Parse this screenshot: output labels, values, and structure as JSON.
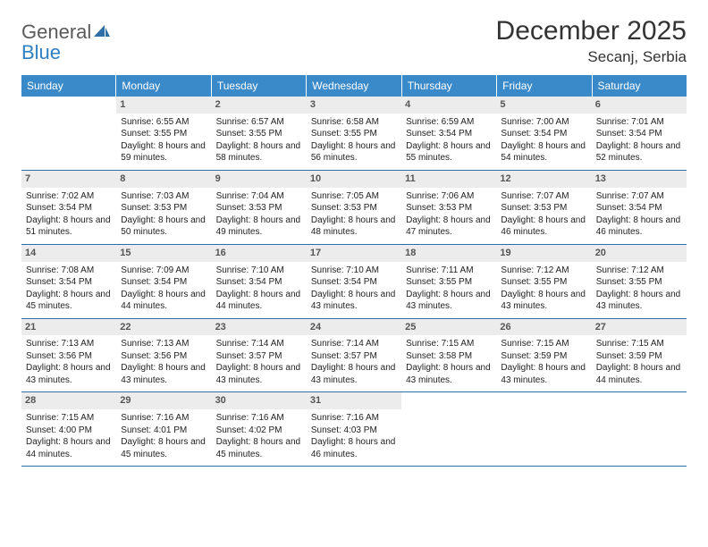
{
  "logo": {
    "word1": "General",
    "word2": "Blue",
    "word1_color": "#5a5a5a",
    "word2_color": "#2f7fc2",
    "sail_color": "#2f6fa8"
  },
  "title": "December 2025",
  "subtitle": "Secanj, Serbia",
  "header_bg": "#3a89c9",
  "daynum_bg": "#ececec",
  "border_color": "#2f6fa8",
  "day_names": [
    "Sunday",
    "Monday",
    "Tuesday",
    "Wednesday",
    "Thursday",
    "Friday",
    "Saturday"
  ],
  "weeks": [
    [
      {
        "empty": true
      },
      {
        "n": "1",
        "sr": "6:55 AM",
        "ss": "3:55 PM",
        "dl": "8 hours and 59 minutes."
      },
      {
        "n": "2",
        "sr": "6:57 AM",
        "ss": "3:55 PM",
        "dl": "8 hours and 58 minutes."
      },
      {
        "n": "3",
        "sr": "6:58 AM",
        "ss": "3:55 PM",
        "dl": "8 hours and 56 minutes."
      },
      {
        "n": "4",
        "sr": "6:59 AM",
        "ss": "3:54 PM",
        "dl": "8 hours and 55 minutes."
      },
      {
        "n": "5",
        "sr": "7:00 AM",
        "ss": "3:54 PM",
        "dl": "8 hours and 54 minutes."
      },
      {
        "n": "6",
        "sr": "7:01 AM",
        "ss": "3:54 PM",
        "dl": "8 hours and 52 minutes."
      }
    ],
    [
      {
        "n": "7",
        "sr": "7:02 AM",
        "ss": "3:54 PM",
        "dl": "8 hours and 51 minutes."
      },
      {
        "n": "8",
        "sr": "7:03 AM",
        "ss": "3:53 PM",
        "dl": "8 hours and 50 minutes."
      },
      {
        "n": "9",
        "sr": "7:04 AM",
        "ss": "3:53 PM",
        "dl": "8 hours and 49 minutes."
      },
      {
        "n": "10",
        "sr": "7:05 AM",
        "ss": "3:53 PM",
        "dl": "8 hours and 48 minutes."
      },
      {
        "n": "11",
        "sr": "7:06 AM",
        "ss": "3:53 PM",
        "dl": "8 hours and 47 minutes."
      },
      {
        "n": "12",
        "sr": "7:07 AM",
        "ss": "3:53 PM",
        "dl": "8 hours and 46 minutes."
      },
      {
        "n": "13",
        "sr": "7:07 AM",
        "ss": "3:54 PM",
        "dl": "8 hours and 46 minutes."
      }
    ],
    [
      {
        "n": "14",
        "sr": "7:08 AM",
        "ss": "3:54 PM",
        "dl": "8 hours and 45 minutes."
      },
      {
        "n": "15",
        "sr": "7:09 AM",
        "ss": "3:54 PM",
        "dl": "8 hours and 44 minutes."
      },
      {
        "n": "16",
        "sr": "7:10 AM",
        "ss": "3:54 PM",
        "dl": "8 hours and 44 minutes."
      },
      {
        "n": "17",
        "sr": "7:10 AM",
        "ss": "3:54 PM",
        "dl": "8 hours and 43 minutes."
      },
      {
        "n": "18",
        "sr": "7:11 AM",
        "ss": "3:55 PM",
        "dl": "8 hours and 43 minutes."
      },
      {
        "n": "19",
        "sr": "7:12 AM",
        "ss": "3:55 PM",
        "dl": "8 hours and 43 minutes."
      },
      {
        "n": "20",
        "sr": "7:12 AM",
        "ss": "3:55 PM",
        "dl": "8 hours and 43 minutes."
      }
    ],
    [
      {
        "n": "21",
        "sr": "7:13 AM",
        "ss": "3:56 PM",
        "dl": "8 hours and 43 minutes."
      },
      {
        "n": "22",
        "sr": "7:13 AM",
        "ss": "3:56 PM",
        "dl": "8 hours and 43 minutes."
      },
      {
        "n": "23",
        "sr": "7:14 AM",
        "ss": "3:57 PM",
        "dl": "8 hours and 43 minutes."
      },
      {
        "n": "24",
        "sr": "7:14 AM",
        "ss": "3:57 PM",
        "dl": "8 hours and 43 minutes."
      },
      {
        "n": "25",
        "sr": "7:15 AM",
        "ss": "3:58 PM",
        "dl": "8 hours and 43 minutes."
      },
      {
        "n": "26",
        "sr": "7:15 AM",
        "ss": "3:59 PM",
        "dl": "8 hours and 43 minutes."
      },
      {
        "n": "27",
        "sr": "7:15 AM",
        "ss": "3:59 PM",
        "dl": "8 hours and 44 minutes."
      }
    ],
    [
      {
        "n": "28",
        "sr": "7:15 AM",
        "ss": "4:00 PM",
        "dl": "8 hours and 44 minutes."
      },
      {
        "n": "29",
        "sr": "7:16 AM",
        "ss": "4:01 PM",
        "dl": "8 hours and 45 minutes."
      },
      {
        "n": "30",
        "sr": "7:16 AM",
        "ss": "4:02 PM",
        "dl": "8 hours and 45 minutes."
      },
      {
        "n": "31",
        "sr": "7:16 AM",
        "ss": "4:03 PM",
        "dl": "8 hours and 46 minutes."
      },
      {
        "empty": true
      },
      {
        "empty": true
      },
      {
        "empty": true
      }
    ]
  ],
  "labels": {
    "sunrise": "Sunrise:",
    "sunset": "Sunset:",
    "daylight": "Daylight:"
  }
}
